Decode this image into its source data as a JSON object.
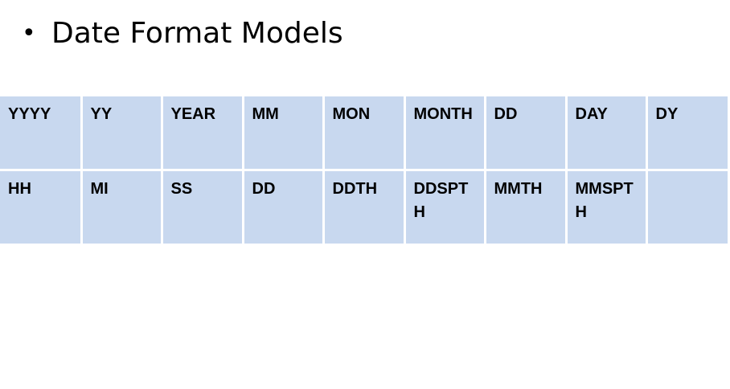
{
  "slide": {
    "bullet_char": "•",
    "bullet_text": "Date Format Models"
  },
  "table": {
    "rows": [
      [
        "YYYY",
        "YY",
        "YEAR",
        "MM",
        "MON",
        "MONTH",
        "DD",
        "DAY",
        "DY"
      ],
      [
        "HH",
        "MI",
        "SS",
        "DD",
        "DDTH",
        "DDSPTH",
        "MMTH",
        "MMSPTH",
        ""
      ]
    ]
  },
  "colors": {
    "cell_fill": "#c8d8ef",
    "cell_border": "#ffffff",
    "text": "#000000"
  }
}
